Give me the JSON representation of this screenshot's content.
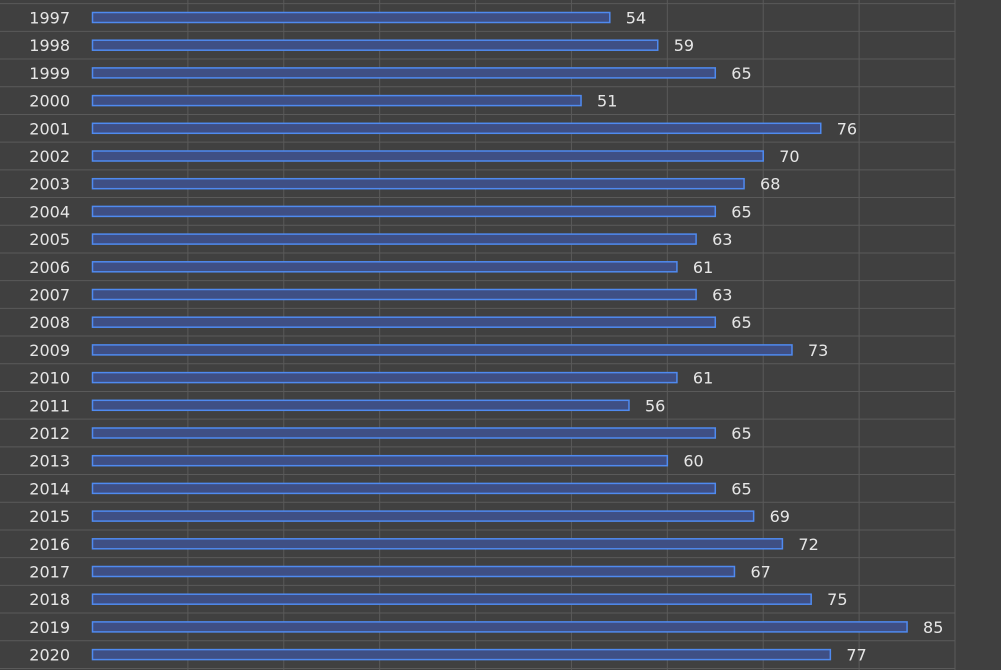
{
  "chart_data": {
    "type": "bar",
    "orientation": "horizontal",
    "categories": [
      "1997",
      "1998",
      "1999",
      "2000",
      "2001",
      "2002",
      "2003",
      "2004",
      "2005",
      "2006",
      "2007",
      "2008",
      "2009",
      "2010",
      "2011",
      "2012",
      "2013",
      "2014",
      "2015",
      "2016",
      "2017",
      "2018",
      "2019",
      "2020"
    ],
    "series": [
      {
        "values": [
          54,
          59,
          65,
          51,
          76,
          70,
          68,
          65,
          63,
          61,
          63,
          65,
          73,
          61,
          56,
          65,
          60,
          65,
          69,
          72,
          67,
          75,
          85,
          77
        ]
      }
    ],
    "xlim": [
      0,
      90
    ],
    "grid": true,
    "data_labels": true,
    "colors": {
      "background": "#404040",
      "grid": "#5a5a5a",
      "bar_fill": "#3f4f84",
      "bar_stroke": "#4f8af0",
      "text": "#e6e6e6"
    }
  }
}
